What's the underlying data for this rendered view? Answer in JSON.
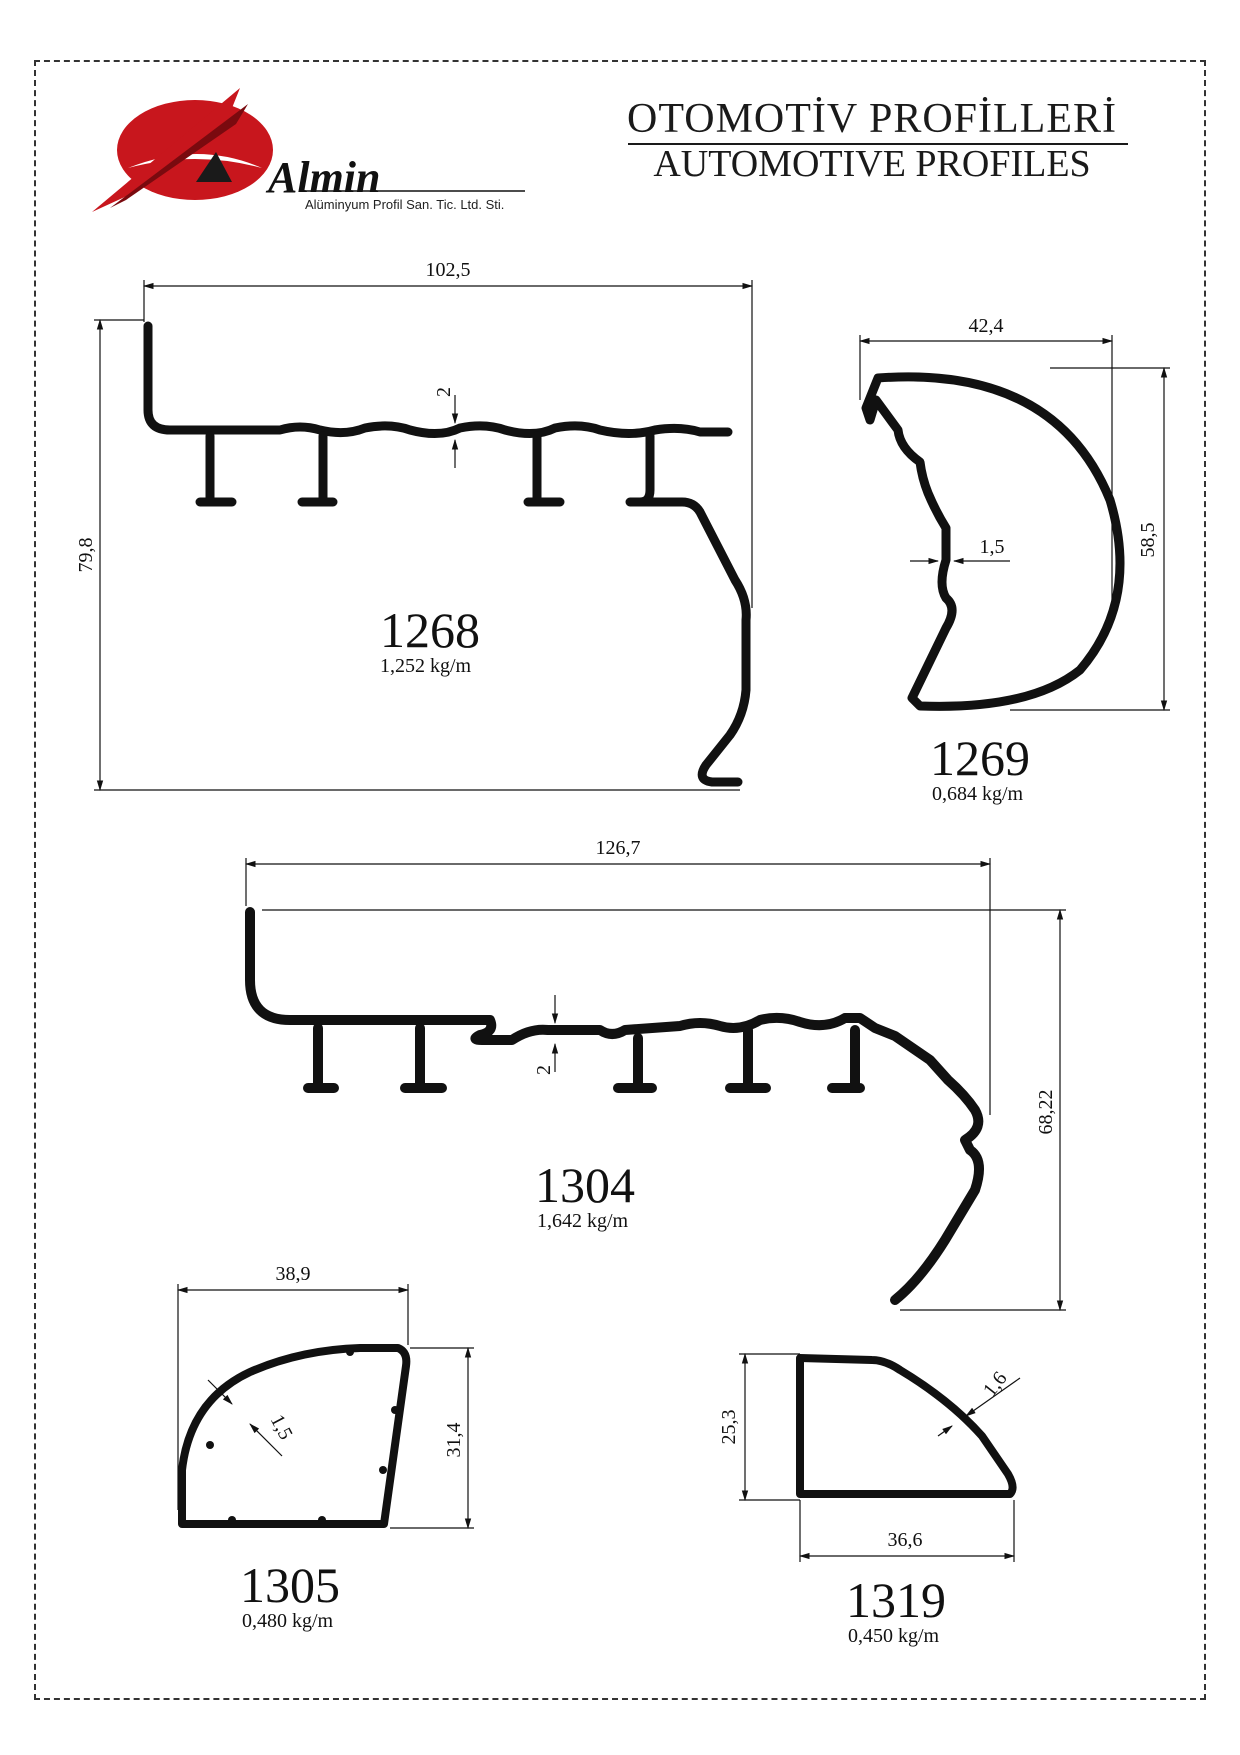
{
  "header": {
    "title_tr": "OTOMOTİV  PROFİLLERİ",
    "title_en": "AUTOMOTIVE PROFILES"
  },
  "logo": {
    "brand": "Almin",
    "tagline": "Alüminyum Profil San. Tic. Ltd. Sti.",
    "color": "#c8161d"
  },
  "profiles": {
    "p1268": {
      "code": "1268",
      "weight": "1,252 kg/m",
      "width": "102,5",
      "height": "79,8",
      "wall": "2"
    },
    "p1269": {
      "code": "1269",
      "weight": "0,684 kg/m",
      "width": "42,4",
      "height": "58,5",
      "wall": "1,5"
    },
    "p1304": {
      "code": "1304",
      "weight": "1,642 kg/m",
      "width": "126,7",
      "height": "68,22",
      "wall": "2"
    },
    "p1305": {
      "code": "1305",
      "weight": "0,480 kg/m",
      "width": "38,9",
      "height": "31,4",
      "wall": "1,5"
    },
    "p1319": {
      "code": "1319",
      "weight": "0,450 kg/m",
      "width": "36,6",
      "height": "25,3",
      "wall": "1,6"
    }
  }
}
